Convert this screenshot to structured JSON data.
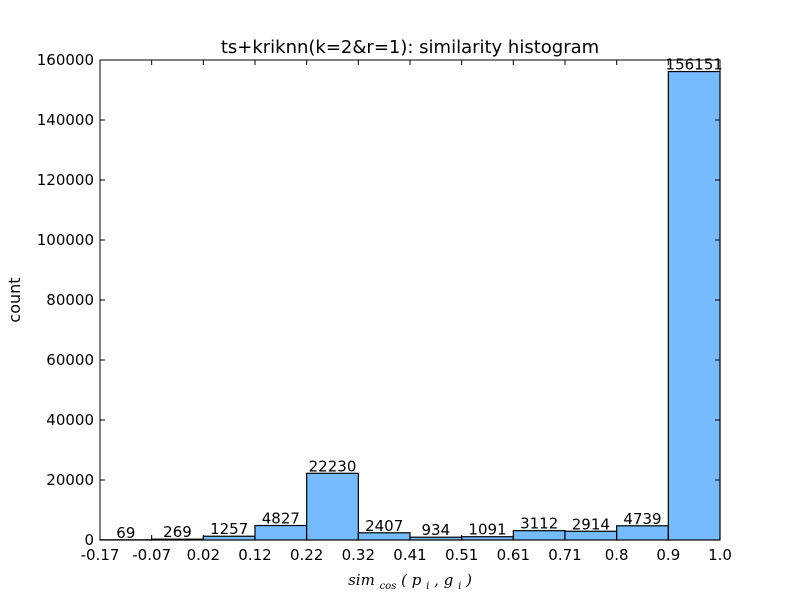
{
  "chart_data": {
    "type": "bar",
    "title": "ts+kriknn(k=2&r=1): similarity histogram",
    "xlabel": {
      "base": "sim",
      "subscript": "cos",
      "args": [
        "p",
        "i",
        "g",
        "i"
      ]
    },
    "ylabel": "count",
    "x_ticks": [
      "-0.17",
      "-0.07",
      "0.02",
      "0.12",
      "0.22",
      "0.32",
      "0.41",
      "0.51",
      "0.61",
      "0.71",
      "0.8",
      "0.9",
      "1.0"
    ],
    "y_ticks": [
      "0",
      "20000",
      "40000",
      "60000",
      "80000",
      "100000",
      "120000",
      "140000",
      "160000"
    ],
    "ylim": [
      0,
      160000
    ],
    "values": [
      69,
      269,
      1257,
      4827,
      22230,
      2407,
      934,
      1091,
      3112,
      2914,
      4739,
      156151
    ],
    "value_labels": [
      "69",
      "269",
      "1257",
      "4827",
      "22230",
      "2407",
      "934",
      "1091",
      "3112",
      "2914",
      "4739",
      "156151"
    ],
    "bar_color": "#77bbff",
    "edge_color": "#000000",
    "grid": false
  }
}
